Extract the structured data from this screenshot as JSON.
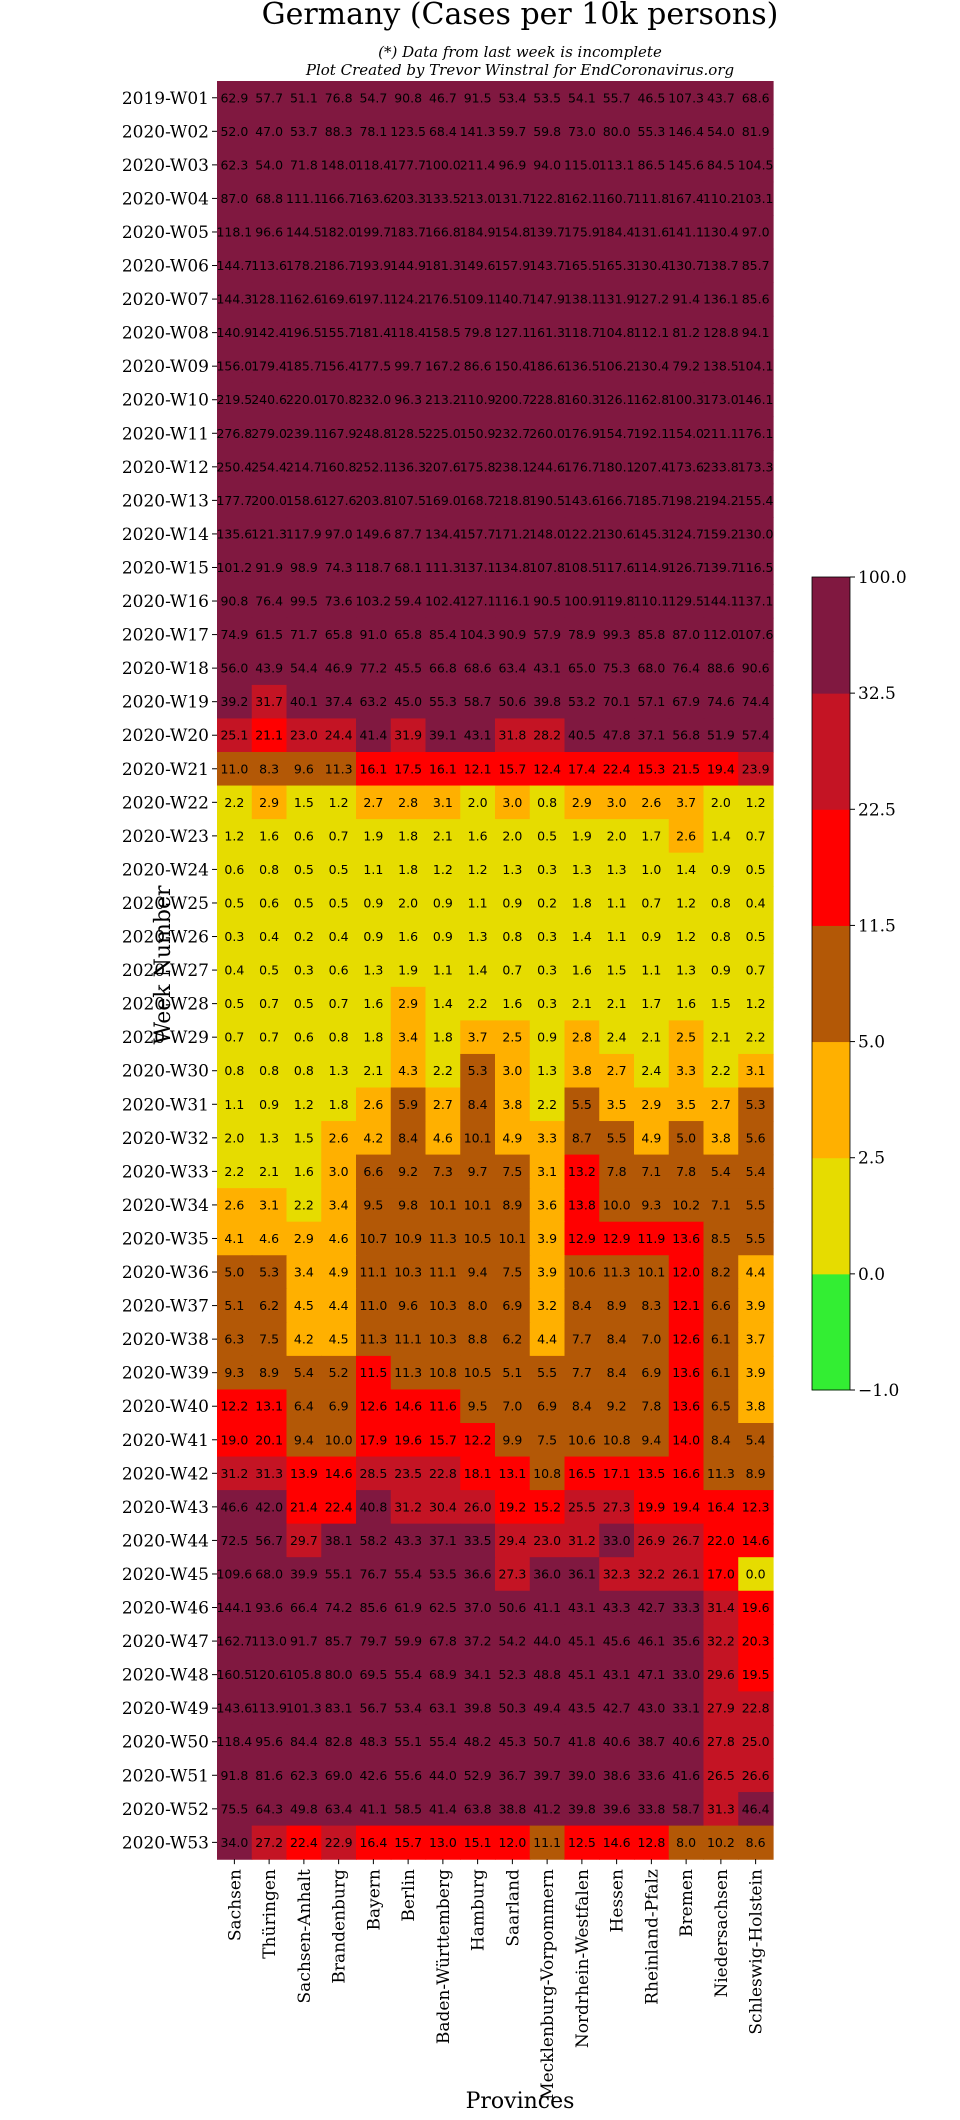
{
  "chart_data": {
    "type": "heatmap",
    "title": "Germany (Cases per 10k persons)",
    "subtitle_lines": [
      "(*) Data from last week is incomplete",
      "Plot Created by Trevor Winstral for EndCoronavirus.org"
    ],
    "xlabel": "Provinces",
    "ylabel": "Week Number",
    "x_categories": [
      "Sachsen",
      "Thüringen",
      "Sachsen-Anhalt",
      "Brandenburg",
      "Bayern",
      "Berlin",
      "Baden-Württemberg",
      "Hamburg",
      "Saarland",
      "Mecklenburg-Vorpommern",
      "Nordrhein-Westfalen",
      "Hessen",
      "Rheinland-Pfalz",
      "Bremen",
      "Niedersachsen",
      "Schleswig-Holstein"
    ],
    "y_categories": [
      "2019-W01",
      "2020-W02",
      "2020-W03",
      "2020-W04",
      "2020-W05",
      "2020-W06",
      "2020-W07",
      "2020-W08",
      "2020-W09",
      "2020-W10",
      "2020-W11",
      "2020-W12",
      "2020-W13",
      "2020-W14",
      "2020-W15",
      "2020-W16",
      "2020-W17",
      "2020-W18",
      "2020-W19",
      "2020-W20",
      "2020-W21",
      "2020-W22",
      "2020-W23",
      "2020-W24",
      "2020-W25",
      "2020-W26",
      "2020-W27",
      "2020-W28",
      "2020-W29",
      "2020-W30",
      "2020-W31",
      "2020-W32",
      "2020-W33",
      "2020-W34",
      "2020-W35",
      "2020-W36",
      "2020-W37",
      "2020-W38",
      "2020-W39",
      "2020-W40",
      "2020-W41",
      "2020-W42",
      "2020-W43",
      "2020-W44",
      "2020-W45",
      "2020-W46",
      "2020-W47",
      "2020-W48",
      "2020-W49",
      "2020-W50",
      "2020-W51",
      "2020-W52",
      "2020-W53"
    ],
    "values": [
      [
        62.9,
        57.7,
        51.1,
        76.8,
        54.7,
        90.8,
        46.7,
        91.5,
        53.4,
        53.5,
        54.1,
        55.7,
        46.5,
        107.3,
        43.7,
        68.6
      ],
      [
        52.0,
        47.0,
        53.7,
        88.3,
        78.1,
        123.5,
        68.4,
        141.3,
        59.7,
        59.8,
        73.0,
        80.0,
        55.3,
        146.4,
        54.0,
        81.9
      ],
      [
        62.3,
        54.0,
        71.8,
        148.0,
        118.4,
        177.7,
        100.0,
        211.4,
        96.9,
        94.0,
        115.0,
        113.1,
        86.5,
        145.6,
        84.5,
        104.5
      ],
      [
        87.0,
        68.8,
        111.1,
        166.7,
        163.6,
        203.3,
        133.5,
        213.0,
        131.7,
        122.8,
        162.1,
        160.7,
        111.8,
        167.4,
        110.2,
        103.1
      ],
      [
        118.1,
        96.6,
        144.5,
        182.0,
        199.7,
        183.7,
        166.8,
        184.9,
        154.8,
        139.7,
        175.9,
        184.4,
        131.6,
        141.1,
        130.4,
        97.0
      ],
      [
        144.7,
        113.6,
        178.2,
        186.7,
        193.9,
        144.9,
        181.3,
        149.6,
        157.9,
        143.7,
        165.5,
        165.3,
        130.4,
        130.7,
        138.7,
        85.7
      ],
      [
        144.3,
        128.1,
        162.6,
        169.6,
        197.1,
        124.2,
        176.5,
        109.1,
        140.7,
        147.9,
        138.1,
        131.9,
        127.2,
        91.4,
        136.1,
        85.6
      ],
      [
        140.9,
        142.4,
        196.5,
        155.7,
        181.4,
        118.4,
        158.5,
        79.8,
        127.1,
        161.3,
        118.7,
        104.8,
        112.1,
        81.2,
        128.8,
        94.1
      ],
      [
        156.0,
        179.4,
        185.7,
        156.4,
        177.5,
        99.7,
        167.2,
        86.6,
        150.4,
        186.6,
        136.5,
        106.2,
        130.4,
        79.2,
        138.5,
        104.1
      ],
      [
        219.5,
        240.6,
        220.0,
        170.8,
        232.0,
        96.3,
        213.2,
        110.9,
        200.7,
        228.8,
        160.3,
        126.1,
        162.8,
        100.3,
        173.0,
        146.1
      ],
      [
        276.8,
        279.0,
        239.1,
        167.9,
        248.8,
        128.5,
        225.0,
        150.9,
        232.7,
        260.0,
        176.9,
        154.7,
        192.1,
        154.0,
        211.1,
        176.1
      ],
      [
        250.4,
        254.4,
        214.7,
        160.8,
        252.1,
        136.3,
        207.6,
        175.8,
        238.1,
        244.6,
        176.7,
        180.1,
        207.4,
        173.6,
        233.8,
        173.3
      ],
      [
        177.7,
        200.0,
        158.6,
        127.6,
        203.8,
        107.5,
        169.0,
        168.7,
        218.8,
        190.5,
        143.6,
        166.7,
        185.7,
        198.2,
        194.2,
        155.4
      ],
      [
        135.6,
        121.3,
        117.9,
        97.0,
        149.6,
        87.7,
        134.4,
        157.7,
        171.2,
        148.0,
        122.2,
        130.6,
        145.3,
        124.7,
        159.2,
        130.0
      ],
      [
        101.2,
        91.9,
        98.9,
        74.3,
        118.7,
        68.1,
        111.3,
        137.1,
        134.8,
        107.8,
        108.5,
        117.6,
        114.9,
        126.7,
        139.7,
        116.5
      ],
      [
        90.8,
        76.4,
        99.5,
        73.6,
        103.2,
        59.4,
        102.4,
        127.1,
        116.1,
        90.5,
        100.9,
        119.8,
        110.1,
        129.5,
        144.1,
        137.1
      ],
      [
        74.9,
        61.5,
        71.7,
        65.8,
        91.0,
        65.8,
        85.4,
        104.3,
        90.9,
        57.9,
        78.9,
        99.3,
        85.8,
        87.0,
        112.0,
        107.6
      ],
      [
        56.0,
        43.9,
        54.4,
        46.9,
        77.2,
        45.5,
        66.8,
        68.6,
        63.4,
        43.1,
        65.0,
        75.3,
        68.0,
        76.4,
        88.6,
        90.6
      ],
      [
        39.2,
        31.7,
        40.1,
        37.4,
        63.2,
        45.0,
        55.3,
        58.7,
        50.6,
        39.8,
        53.2,
        70.1,
        57.1,
        67.9,
        74.6,
        74.4
      ],
      [
        25.1,
        21.1,
        23.0,
        24.4,
        41.4,
        31.9,
        39.1,
        43.1,
        31.8,
        28.2,
        40.5,
        47.8,
        37.1,
        56.8,
        51.9,
        57.4
      ],
      [
        11.0,
        8.3,
        9.6,
        11.3,
        16.1,
        17.5,
        16.1,
        12.1,
        15.7,
        12.4,
        17.4,
        22.4,
        15.3,
        21.5,
        19.4,
        23.9
      ],
      [
        2.2,
        2.9,
        1.5,
        1.2,
        2.7,
        2.8,
        3.1,
        2.0,
        3.0,
        0.8,
        2.9,
        3.0,
        2.6,
        3.7,
        2.0,
        1.2
      ],
      [
        1.2,
        1.6,
        0.6,
        0.7,
        1.9,
        1.8,
        2.1,
        1.6,
        2.0,
        0.5,
        1.9,
        2.0,
        1.7,
        2.6,
        1.4,
        0.7
      ],
      [
        0.6,
        0.8,
        0.5,
        0.5,
        1.1,
        1.8,
        1.2,
        1.2,
        1.3,
        0.3,
        1.3,
        1.3,
        1.0,
        1.4,
        0.9,
        0.5
      ],
      [
        0.5,
        0.6,
        0.5,
        0.5,
        0.9,
        2.0,
        0.9,
        1.1,
        0.9,
        0.2,
        1.8,
        1.1,
        0.7,
        1.2,
        0.8,
        0.4
      ],
      [
        0.3,
        0.4,
        0.2,
        0.4,
        0.9,
        1.6,
        0.9,
        1.3,
        0.8,
        0.3,
        1.4,
        1.1,
        0.9,
        1.2,
        0.8,
        0.5
      ],
      [
        0.4,
        0.5,
        0.3,
        0.6,
        1.3,
        1.9,
        1.1,
        1.4,
        0.7,
        0.3,
        1.6,
        1.5,
        1.1,
        1.3,
        0.9,
        0.7
      ],
      [
        0.5,
        0.7,
        0.5,
        0.7,
        1.6,
        2.9,
        1.4,
        2.2,
        1.6,
        0.3,
        2.1,
        2.1,
        1.7,
        1.6,
        1.5,
        1.2
      ],
      [
        0.7,
        0.7,
        0.6,
        0.8,
        1.8,
        3.4,
        1.8,
        3.7,
        2.5,
        0.9,
        2.8,
        2.4,
        2.1,
        2.5,
        2.1,
        2.2
      ],
      [
        0.8,
        0.8,
        0.8,
        1.3,
        2.1,
        4.3,
        2.2,
        5.3,
        3.0,
        1.3,
        3.8,
        2.7,
        2.4,
        3.3,
        2.2,
        3.1
      ],
      [
        1.1,
        0.9,
        1.2,
        1.8,
        2.6,
        5.9,
        2.7,
        8.4,
        3.8,
        2.2,
        5.5,
        3.5,
        2.9,
        3.5,
        2.7,
        5.3
      ],
      [
        2.0,
        1.3,
        1.5,
        2.6,
        4.2,
        8.4,
        4.6,
        10.1,
        4.9,
        3.3,
        8.7,
        5.5,
        4.9,
        5.0,
        3.8,
        5.6
      ],
      [
        2.2,
        2.1,
        1.6,
        3.0,
        6.6,
        9.2,
        7.3,
        9.7,
        7.5,
        3.1,
        13.2,
        7.8,
        7.1,
        7.8,
        5.4,
        5.4
      ],
      [
        2.6,
        3.1,
        2.2,
        3.4,
        9.5,
        9.8,
        10.1,
        10.1,
        8.9,
        3.6,
        13.8,
        10.0,
        9.3,
        10.2,
        7.1,
        5.5
      ],
      [
        4.1,
        4.6,
        2.9,
        4.6,
        10.7,
        10.9,
        11.3,
        10.5,
        10.1,
        3.9,
        12.9,
        12.9,
        11.9,
        13.6,
        8.5,
        5.5
      ],
      [
        5.0,
        5.3,
        3.4,
        4.9,
        11.1,
        10.3,
        11.1,
        9.4,
        7.5,
        3.9,
        10.6,
        11.3,
        10.1,
        12.0,
        8.2,
        4.4
      ],
      [
        5.1,
        6.2,
        4.5,
        4.4,
        11.0,
        9.6,
        10.3,
        8.0,
        6.9,
        3.2,
        8.4,
        8.9,
        8.3,
        12.1,
        6.6,
        3.9
      ],
      [
        6.3,
        7.5,
        4.2,
        4.5,
        11.3,
        11.1,
        10.3,
        8.8,
        6.2,
        4.4,
        7.7,
        8.4,
        7.0,
        12.6,
        6.1,
        3.7
      ],
      [
        9.3,
        8.9,
        5.4,
        5.2,
        11.5,
        11.3,
        10.8,
        10.5,
        5.1,
        5.5,
        7.7,
        8.4,
        6.9,
        13.6,
        6.1,
        3.9
      ],
      [
        12.2,
        13.1,
        6.4,
        6.9,
        12.6,
        14.6,
        11.6,
        9.5,
        7.0,
        6.9,
        8.4,
        9.2,
        7.8,
        13.6,
        6.5,
        3.8
      ],
      [
        19.0,
        20.1,
        9.4,
        10.0,
        17.9,
        19.6,
        15.7,
        12.2,
        9.9,
        7.5,
        10.6,
        10.8,
        9.4,
        14.0,
        8.4,
        5.4
      ],
      [
        31.2,
        31.3,
        13.9,
        14.6,
        28.5,
        23.5,
        22.8,
        18.1,
        13.1,
        10.8,
        16.5,
        17.1,
        13.5,
        16.6,
        11.3,
        8.9
      ],
      [
        46.6,
        42.0,
        21.4,
        22.4,
        40.8,
        31.2,
        30.4,
        26.0,
        19.2,
        15.2,
        25.5,
        27.3,
        19.9,
        19.4,
        16.4,
        12.3
      ],
      [
        72.5,
        56.7,
        29.7,
        38.1,
        58.2,
        43.3,
        37.1,
        33.5,
        29.4,
        23.0,
        31.2,
        33.0,
        26.9,
        26.7,
        22.0,
        14.6
      ],
      [
        109.6,
        68.0,
        39.9,
        55.1,
        76.7,
        55.4,
        53.5,
        36.6,
        27.3,
        36.0,
        36.1,
        32.3,
        32.2,
        26.1,
        17.0,
        0
      ],
      [
        144.1,
        93.6,
        66.4,
        74.2,
        85.6,
        61.9,
        62.5,
        37.0,
        50.6,
        41.1,
        43.1,
        43.3,
        42.7,
        33.3,
        31.4,
        19.6
      ],
      [
        162.7,
        113.0,
        91.7,
        85.7,
        79.7,
        59.9,
        67.8,
        37.2,
        54.2,
        44.0,
        45.1,
        45.6,
        46.1,
        35.6,
        32.2,
        20.3
      ],
      [
        160.5,
        120.6,
        105.8,
        80.0,
        69.5,
        55.4,
        68.9,
        34.1,
        52.3,
        48.8,
        45.1,
        43.1,
        47.1,
        33.0,
        29.6,
        19.5
      ],
      [
        143.6,
        113.9,
        101.3,
        83.1,
        56.7,
        53.4,
        63.1,
        39.8,
        50.3,
        49.4,
        43.5,
        42.7,
        43.0,
        33.1,
        27.9,
        22.8
      ],
      [
        118.4,
        95.6,
        84.4,
        82.8,
        48.3,
        55.1,
        55.4,
        48.2,
        45.3,
        50.7,
        41.8,
        40.6,
        38.7,
        40.6,
        27.8,
        25.0
      ],
      [
        91.8,
        81.6,
        62.3,
        69.0,
        42.6,
        55.6,
        44.0,
        52.9,
        36.7,
        39.7,
        39.0,
        38.6,
        33.6,
        41.6,
        26.5,
        26.6
      ],
      [
        75.5,
        64.3,
        49.8,
        63.4,
        41.1,
        58.5,
        41.4,
        63.8,
        38.8,
        41.2,
        39.8,
        39.6,
        33.8,
        58.7,
        31.3,
        46.4
      ],
      [
        34.0,
        27.2,
        22.4,
        22.9,
        16.4,
        15.7,
        13.0,
        15.1,
        12.0,
        11.1,
        12.5,
        14.6,
        12.8,
        8.0,
        10.2,
        8.6
      ]
    ],
    "colorbar": {
      "boundaries": [
        -1.0,
        0.0,
        2.5,
        5.0,
        11.5,
        22.5,
        32.5,
        100.0
      ],
      "tick_labels": [
        "−1.0",
        "0.0",
        "2.5",
        "5.0",
        "11.5",
        "22.5",
        "32.5",
        "100.0"
      ],
      "colors": [
        "#33ee33",
        "#e6dc00",
        "#ffb000",
        "#b35806",
        "#ff0000",
        "#c41424",
        "#801840"
      ]
    }
  }
}
